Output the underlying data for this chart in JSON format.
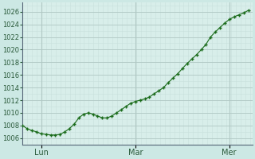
{
  "background_color": "#cce8e4",
  "plot_bg_color": "#d8eeea",
  "grid_major_color": "#b0c8c4",
  "grid_minor_color": "#c8e0dc",
  "line_color": "#1a6b1a",
  "marker_color": "#1a6b1a",
  "ylabel_values": [
    1006,
    1008,
    1010,
    1012,
    1014,
    1016,
    1018,
    1020,
    1022,
    1024,
    1026
  ],
  "ylim": [
    1005.0,
    1027.5
  ],
  "x_tick_labels": [
    "Lun",
    "Mar",
    "Mer"
  ],
  "x_tick_positions": [
    0.083,
    0.5,
    0.916
  ],
  "data_x": [
    0.0,
    0.021,
    0.042,
    0.062,
    0.083,
    0.104,
    0.125,
    0.146,
    0.167,
    0.188,
    0.208,
    0.229,
    0.25,
    0.271,
    0.292,
    0.312,
    0.333,
    0.354,
    0.375,
    0.396,
    0.417,
    0.438,
    0.458,
    0.479,
    0.5,
    0.521,
    0.542,
    0.562,
    0.583,
    0.604,
    0.625,
    0.646,
    0.667,
    0.688,
    0.708,
    0.729,
    0.75,
    0.771,
    0.792,
    0.812,
    0.833,
    0.854,
    0.875,
    0.896,
    0.917,
    0.938,
    0.958,
    0.979,
    1.0
  ],
  "data_y": [
    1008.0,
    1007.5,
    1007.2,
    1007.0,
    1006.7,
    1006.6,
    1006.5,
    1006.5,
    1006.6,
    1007.0,
    1007.5,
    1008.2,
    1009.2,
    1009.8,
    1010.0,
    1009.8,
    1009.5,
    1009.2,
    1009.2,
    1009.5,
    1010.0,
    1010.5,
    1011.0,
    1011.5,
    1011.8,
    1012.0,
    1012.2,
    1012.5,
    1013.0,
    1013.5,
    1014.0,
    1014.8,
    1015.5,
    1016.2,
    1017.0,
    1017.8,
    1018.5,
    1019.2,
    1020.0,
    1020.8,
    1022.0,
    1022.8,
    1023.5,
    1024.2,
    1024.8,
    1025.2,
    1025.5,
    1025.8,
    1026.2
  ]
}
